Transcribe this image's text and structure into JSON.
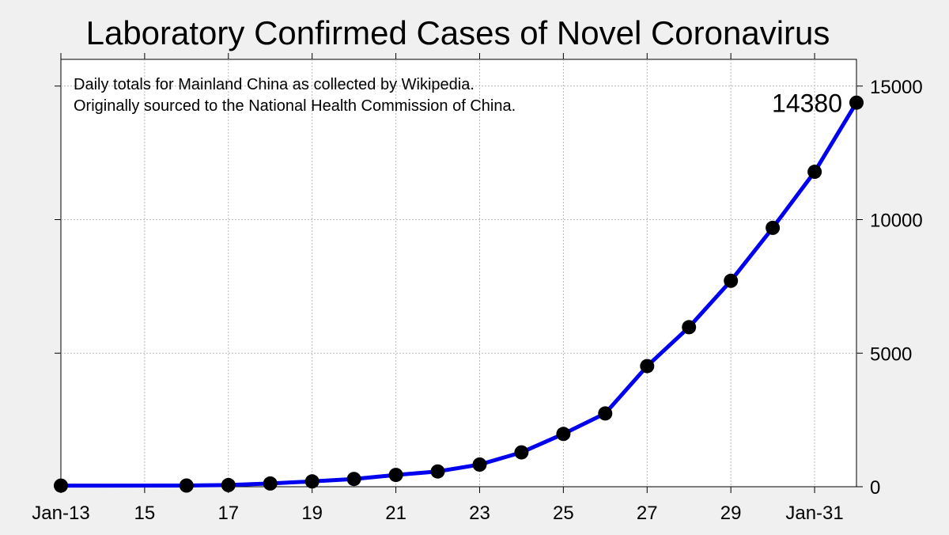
{
  "chart_data": {
    "type": "line",
    "title": "Laboratory Confirmed Cases of Novel Coronavirus",
    "annotations": [
      "Daily totals for Mainland China as collected by Wikipedia.",
      "Originally sourced to the National Health Commission of China."
    ],
    "end_label": "14380",
    "x_ticks": [
      {
        "date": "2020-01-13",
        "label": "Jan-13"
      },
      {
        "date": "2020-01-15",
        "label": "15"
      },
      {
        "date": "2020-01-17",
        "label": "17"
      },
      {
        "date": "2020-01-19",
        "label": "19"
      },
      {
        "date": "2020-01-21",
        "label": "21"
      },
      {
        "date": "2020-01-23",
        "label": "23"
      },
      {
        "date": "2020-01-25",
        "label": "25"
      },
      {
        "date": "2020-01-27",
        "label": "27"
      },
      {
        "date": "2020-01-29",
        "label": "29"
      },
      {
        "date": "2020-01-31",
        "label": "Jan-31"
      }
    ],
    "xlim": [
      "2020-01-13",
      "2020-02-01"
    ],
    "y_ticks": [
      0,
      5000,
      10000,
      15000
    ],
    "ylim": [
      0,
      16000
    ],
    "y_axis_side": "right",
    "grid": true,
    "series": [
      {
        "color": "#0000ee",
        "marker_color": "#000000",
        "points": [
          {
            "x": "2020-01-13",
            "y": 41
          },
          {
            "x": "2020-01-16",
            "y": 45
          },
          {
            "x": "2020-01-17",
            "y": 62
          },
          {
            "x": "2020-01-18",
            "y": 121
          },
          {
            "x": "2020-01-19",
            "y": 198
          },
          {
            "x": "2020-01-20",
            "y": 291
          },
          {
            "x": "2020-01-21",
            "y": 440
          },
          {
            "x": "2020-01-22",
            "y": 571
          },
          {
            "x": "2020-01-23",
            "y": 830
          },
          {
            "x": "2020-01-24",
            "y": 1287
          },
          {
            "x": "2020-01-25",
            "y": 1975
          },
          {
            "x": "2020-01-26",
            "y": 2744
          },
          {
            "x": "2020-01-27",
            "y": 4515
          },
          {
            "x": "2020-01-28",
            "y": 5974
          },
          {
            "x": "2020-01-29",
            "y": 7711
          },
          {
            "x": "2020-01-30",
            "y": 9692
          },
          {
            "x": "2020-01-31",
            "y": 11791
          },
          {
            "x": "2020-02-01",
            "y": 14380
          }
        ]
      }
    ]
  }
}
